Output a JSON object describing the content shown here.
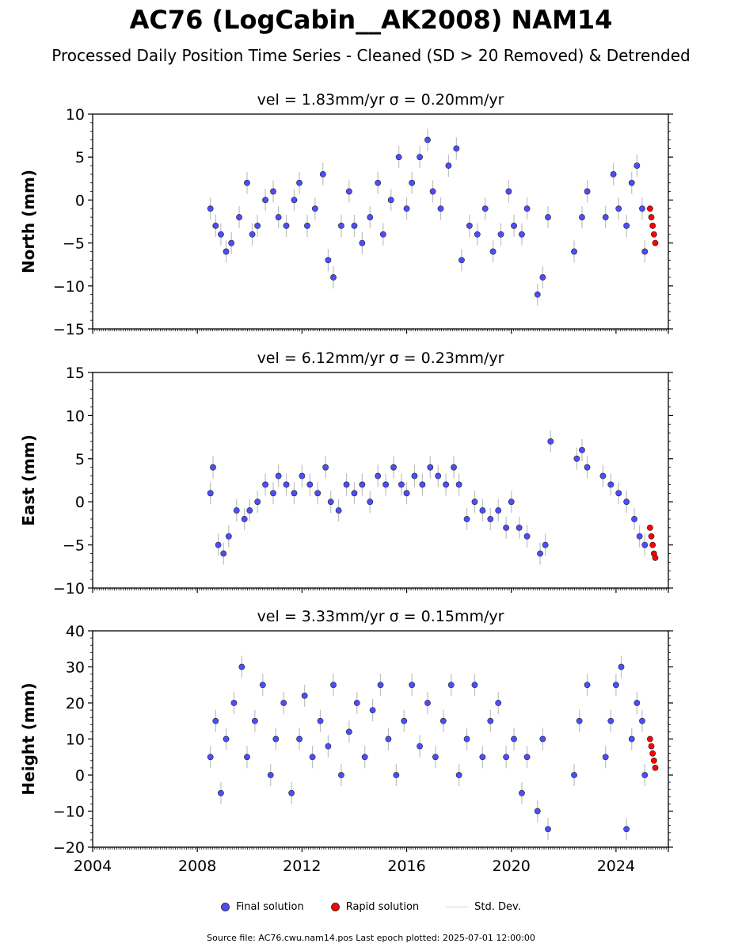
{
  "title": "AC76 (LogCabin__AK2008) NAM14",
  "subtitle": "Processed Daily Position Time Series - Cleaned (SD > 20 Removed) & Detrended",
  "legend": {
    "final_label": "Final solution",
    "rapid_label": "Rapid solution",
    "std_label": "Std. Dev."
  },
  "footer": "Source file: AC76.cwu.nam14.pos  Last epoch plotted: 2025-07-01 12:00:00",
  "colors": {
    "final": "#4d4dff",
    "rapid": "#ff0000",
    "std": "#b0b0b0",
    "grid": "#000000"
  },
  "chart_data": [
    {
      "type": "scatter",
      "title": "vel = 1.83mm/yr   σ = 0.20mm/yr",
      "ylabel": "North (mm)",
      "ylim": [
        -15,
        10
      ],
      "yticks": [
        -15,
        -10,
        -5,
        0,
        5,
        10
      ],
      "xlim": [
        2004,
        2026
      ],
      "xticks": [
        2004,
        2008,
        2012,
        2016,
        2020,
        2024
      ],
      "show_xticklabels": false,
      "series": [
        {
          "name": "Final solution",
          "x": [
            2008.5,
            2008.7,
            2008.9,
            2009.1,
            2009.3,
            2009.6,
            2009.9,
            2010.1,
            2010.3,
            2010.6,
            2010.9,
            2011.1,
            2011.4,
            2011.7,
            2011.9,
            2012.2,
            2012.5,
            2012.8,
            2013.0,
            2013.2,
            2013.5,
            2013.8,
            2014.0,
            2014.3,
            2014.6,
            2014.9,
            2015.1,
            2015.4,
            2015.7,
            2016.0,
            2016.2,
            2016.5,
            2016.8,
            2017.0,
            2017.3,
            2017.6,
            2017.9,
            2018.1,
            2018.4,
            2018.7,
            2019.0,
            2019.3,
            2019.6,
            2019.9,
            2020.1,
            2020.4,
            2020.6,
            2021.0,
            2021.2,
            2021.4,
            2022.4,
            2022.7,
            2022.9,
            2023.6,
            2023.9,
            2024.1,
            2024.4,
            2024.6,
            2024.8,
            2025.0,
            2025.1
          ],
          "y": [
            -1,
            -3,
            -4,
            -6,
            -5,
            -2,
            2,
            -4,
            -3,
            0,
            1,
            -2,
            -3,
            0,
            2,
            -3,
            -1,
            3,
            -7,
            -9,
            -3,
            1,
            -3,
            -5,
            -2,
            2,
            -4,
            0,
            5,
            -1,
            2,
            5,
            7,
            1,
            -1,
            4,
            6,
            -7,
            -3,
            -4,
            -1,
            -6,
            -4,
            1,
            -3,
            -4,
            -1,
            -11,
            -9,
            -2,
            -6,
            -2,
            1,
            -2,
            3,
            -1,
            -3,
            2,
            4,
            -1,
            -6
          ]
        },
        {
          "name": "Rapid solution",
          "x": [
            2025.3,
            2025.35,
            2025.4,
            2025.45,
            2025.5
          ],
          "y": [
            -1,
            -2,
            -3,
            -4,
            -5
          ]
        }
      ]
    },
    {
      "type": "scatter",
      "title": "vel = 6.12mm/yr   σ = 0.23mm/yr",
      "ylabel": "East (mm)",
      "ylim": [
        -10,
        15
      ],
      "yticks": [
        -10,
        -5,
        0,
        5,
        10,
        15
      ],
      "xlim": [
        2004,
        2026
      ],
      "xticks": [
        2004,
        2008,
        2012,
        2016,
        2020,
        2024
      ],
      "show_xticklabels": false,
      "series": [
        {
          "name": "Final solution",
          "x": [
            2008.5,
            2008.6,
            2008.8,
            2009.0,
            2009.2,
            2009.5,
            2009.8,
            2010.0,
            2010.3,
            2010.6,
            2010.9,
            2011.1,
            2011.4,
            2011.7,
            2012.0,
            2012.3,
            2012.6,
            2012.9,
            2013.1,
            2013.4,
            2013.7,
            2014.0,
            2014.3,
            2014.6,
            2014.9,
            2015.2,
            2015.5,
            2015.8,
            2016.0,
            2016.3,
            2016.6,
            2016.9,
            2017.2,
            2017.5,
            2017.8,
            2018.0,
            2018.3,
            2018.6,
            2018.9,
            2019.2,
            2019.5,
            2019.8,
            2020.0,
            2020.3,
            2020.6,
            2021.1,
            2021.3,
            2021.5,
            2022.5,
            2022.7,
            2022.9,
            2023.5,
            2023.8,
            2024.1,
            2024.4,
            2024.7,
            2024.9,
            2025.1
          ],
          "y": [
            1,
            4,
            -5,
            -6,
            -4,
            -1,
            -2,
            -1,
            0,
            2,
            1,
            3,
            2,
            1,
            3,
            2,
            1,
            4,
            0,
            -1,
            2,
            1,
            2,
            0,
            3,
            2,
            4,
            2,
            1,
            3,
            2,
            4,
            3,
            2,
            4,
            2,
            -2,
            0,
            -1,
            -2,
            -1,
            -3,
            0,
            -3,
            -4,
            -6,
            -5,
            7,
            5,
            6,
            4,
            3,
            2,
            1,
            0,
            -2,
            -4,
            -5
          ]
        },
        {
          "name": "Rapid solution",
          "x": [
            2025.3,
            2025.35,
            2025.4,
            2025.45,
            2025.5
          ],
          "y": [
            -3,
            -4,
            -5,
            -6,
            -6.5
          ]
        }
      ]
    },
    {
      "type": "scatter",
      "title": "vel = 3.33mm/yr   σ = 0.15mm/yr",
      "ylabel": "Height (mm)",
      "ylim": [
        -20,
        40
      ],
      "yticks": [
        -20,
        -10,
        0,
        10,
        20,
        30,
        40
      ],
      "xlim": [
        2004,
        2026
      ],
      "xticks": [
        2004,
        2008,
        2012,
        2016,
        2020,
        2024
      ],
      "show_xticklabels": true,
      "series": [
        {
          "name": "Final solution",
          "x": [
            2008.5,
            2008.7,
            2008.9,
            2009.1,
            2009.4,
            2009.7,
            2009.9,
            2010.2,
            2010.5,
            2010.8,
            2011.0,
            2011.3,
            2011.6,
            2011.9,
            2012.1,
            2012.4,
            2012.7,
            2013.0,
            2013.2,
            2013.5,
            2013.8,
            2014.1,
            2014.4,
            2014.7,
            2015.0,
            2015.3,
            2015.6,
            2015.9,
            2016.2,
            2016.5,
            2016.8,
            2017.1,
            2017.4,
            2017.7,
            2018.0,
            2018.3,
            2018.6,
            2018.9,
            2019.2,
            2019.5,
            2019.8,
            2020.1,
            2020.4,
            2020.6,
            2021.0,
            2021.2,
            2021.4,
            2022.4,
            2022.6,
            2022.9,
            2023.6,
            2023.8,
            2024.0,
            2024.2,
            2024.4,
            2024.6,
            2024.8,
            2025.0,
            2025.1
          ],
          "y": [
            5,
            15,
            -5,
            10,
            20,
            30,
            5,
            15,
            25,
            0,
            10,
            20,
            -5,
            10,
            22,
            5,
            15,
            8,
            25,
            0,
            12,
            20,
            5,
            18,
            25,
            10,
            0,
            15,
            25,
            8,
            20,
            5,
            15,
            25,
            0,
            10,
            25,
            5,
            15,
            20,
            5,
            10,
            -5,
            5,
            -10,
            10,
            -15,
            0,
            15,
            25,
            5,
            15,
            25,
            30,
            -15,
            10,
            20,
            15,
            0
          ]
        },
        {
          "name": "Rapid solution",
          "x": [
            2025.3,
            2025.35,
            2025.4,
            2025.45,
            2025.5
          ],
          "y": [
            10,
            8,
            6,
            4,
            2
          ]
        }
      ]
    }
  ]
}
